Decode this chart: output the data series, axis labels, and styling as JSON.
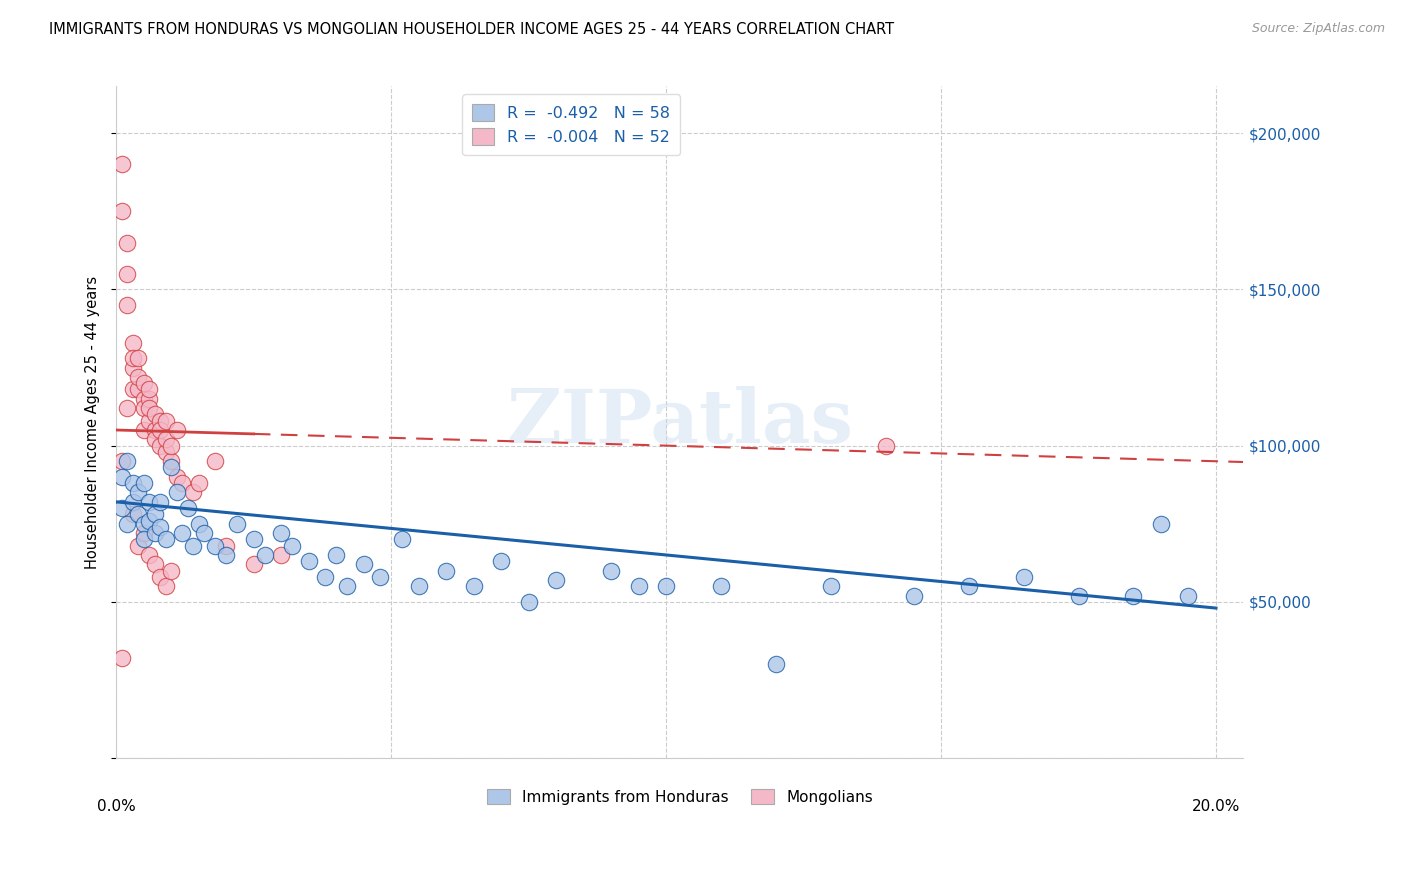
{
  "title": "IMMIGRANTS FROM HONDURAS VS MONGOLIAN HOUSEHOLDER INCOME AGES 25 - 44 YEARS CORRELATION CHART",
  "source": "Source: ZipAtlas.com",
  "ylabel": "Householder Income Ages 25 - 44 years",
  "xlim": [
    0.0,
    0.205
  ],
  "ylim": [
    0,
    215000
  ],
  "yticks": [
    0,
    50000,
    100000,
    150000,
    200000
  ],
  "xticks": [
    0.0,
    0.05,
    0.1,
    0.15,
    0.2
  ],
  "blue_color": "#aec6e8",
  "pink_color": "#f5b8c8",
  "blue_line_color": "#1a5fa8",
  "pink_line_color": "#d04040",
  "legend_text_color": "#1a5fa8",
  "watermark_text": "ZIPatlas",
  "legend_blue": "R =  -0.492   N = 58",
  "legend_pink": "R =  -0.004   N = 52",
  "blue_x": [
    0.001,
    0.001,
    0.002,
    0.002,
    0.003,
    0.003,
    0.004,
    0.004,
    0.005,
    0.005,
    0.005,
    0.006,
    0.006,
    0.007,
    0.007,
    0.008,
    0.008,
    0.009,
    0.01,
    0.011,
    0.012,
    0.013,
    0.014,
    0.015,
    0.016,
    0.018,
    0.02,
    0.022,
    0.025,
    0.027,
    0.03,
    0.032,
    0.035,
    0.038,
    0.04,
    0.042,
    0.045,
    0.048,
    0.052,
    0.055,
    0.06,
    0.065,
    0.07,
    0.075,
    0.08,
    0.09,
    0.095,
    0.1,
    0.11,
    0.12,
    0.13,
    0.145,
    0.155,
    0.165,
    0.175,
    0.185,
    0.19,
    0.195
  ],
  "blue_y": [
    90000,
    80000,
    95000,
    75000,
    88000,
    82000,
    85000,
    78000,
    88000,
    75000,
    70000,
    82000,
    76000,
    78000,
    72000,
    82000,
    74000,
    70000,
    93000,
    85000,
    72000,
    80000,
    68000,
    75000,
    72000,
    68000,
    65000,
    75000,
    70000,
    65000,
    72000,
    68000,
    63000,
    58000,
    65000,
    55000,
    62000,
    58000,
    70000,
    55000,
    60000,
    55000,
    63000,
    50000,
    57000,
    60000,
    55000,
    55000,
    55000,
    30000,
    55000,
    52000,
    55000,
    58000,
    52000,
    52000,
    75000,
    52000
  ],
  "pink_x": [
    0.001,
    0.001,
    0.002,
    0.002,
    0.002,
    0.003,
    0.003,
    0.003,
    0.003,
    0.004,
    0.004,
    0.004,
    0.005,
    0.005,
    0.005,
    0.005,
    0.006,
    0.006,
    0.006,
    0.006,
    0.007,
    0.007,
    0.007,
    0.008,
    0.008,
    0.008,
    0.009,
    0.009,
    0.009,
    0.01,
    0.01,
    0.011,
    0.011,
    0.012,
    0.014,
    0.015,
    0.018,
    0.02,
    0.025,
    0.03,
    0.001,
    0.002,
    0.003,
    0.004,
    0.005,
    0.006,
    0.007,
    0.008,
    0.009,
    0.01,
    0.14,
    0.001
  ],
  "pink_y": [
    190000,
    175000,
    155000,
    145000,
    165000,
    125000,
    133000,
    128000,
    118000,
    128000,
    118000,
    122000,
    115000,
    120000,
    112000,
    105000,
    108000,
    115000,
    112000,
    118000,
    105000,
    110000,
    102000,
    108000,
    100000,
    105000,
    98000,
    102000,
    108000,
    95000,
    100000,
    105000,
    90000,
    88000,
    85000,
    88000,
    95000,
    68000,
    62000,
    65000,
    32000,
    112000,
    78000,
    68000,
    72000,
    65000,
    62000,
    58000,
    55000,
    60000,
    100000,
    95000
  ],
  "pink_line_y_intercept": 105000,
  "pink_line_slope": -50000,
  "blue_line_y_at_0": 82000,
  "blue_line_y_at_020": 48000
}
